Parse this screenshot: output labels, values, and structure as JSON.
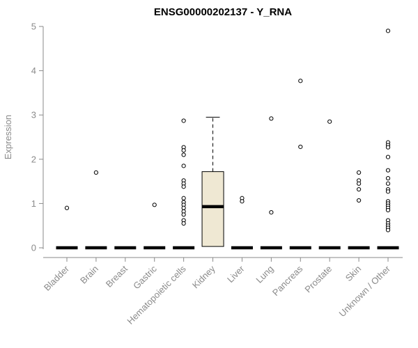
{
  "chart_data": {
    "type": "boxplot",
    "title": "ENSG00000202137 - Y_RNA",
    "ylabel": "Expression",
    "ylim": [
      0,
      5
    ],
    "yticks": [
      0,
      1,
      2,
      3,
      4,
      5
    ],
    "grid": false,
    "colors": {
      "axis": "#8a8a8a",
      "label": "#8a8a8a",
      "box_fill": "#efe8d3",
      "box_border": "#000000",
      "median": "#000000",
      "whisker": "#000000",
      "outlier_stroke": "#000000",
      "outlier_fill": "#ffffff",
      "background": "#ffffff",
      "title": "#000000"
    },
    "categories": [
      "Bladder",
      "Brain",
      "Breast",
      "Gastric",
      "Hematopoietic cells",
      "Kidney",
      "Liver",
      "Lung",
      "Pancreas",
      "Prostate",
      "Skin",
      "Unknown / Other"
    ],
    "boxes": [
      {
        "category": "Bladder",
        "q1": 0,
        "median": 0,
        "q3": 0,
        "whisker_low": 0,
        "whisker_high": 0,
        "outliers": [
          0.9
        ]
      },
      {
        "category": "Brain",
        "q1": 0,
        "median": 0,
        "q3": 0,
        "whisker_low": 0,
        "whisker_high": 0,
        "outliers": [
          1.7
        ]
      },
      {
        "category": "Breast",
        "q1": 0,
        "median": 0,
        "q3": 0,
        "whisker_low": 0,
        "whisker_high": 0,
        "outliers": []
      },
      {
        "category": "Gastric",
        "q1": 0,
        "median": 0,
        "q3": 0,
        "whisker_low": 0,
        "whisker_high": 0,
        "outliers": [
          0.97
        ]
      },
      {
        "category": "Hematopoietic cells",
        "q1": 0,
        "median": 0,
        "q3": 0,
        "whisker_low": 0,
        "whisker_high": 0,
        "outliers": [
          2.87,
          2.27,
          2.2,
          2.1,
          1.85,
          1.52,
          1.45,
          1.38,
          1.12,
          1.03,
          0.97,
          0.9,
          0.82,
          0.75,
          0.62,
          0.55
        ]
      },
      {
        "category": "Kidney",
        "q1": 0.03,
        "median": 0.93,
        "q3": 1.72,
        "whisker_low": 0.03,
        "whisker_high": 2.95,
        "outliers": []
      },
      {
        "category": "Liver",
        "q1": 0,
        "median": 0,
        "q3": 0,
        "whisker_low": 0,
        "whisker_high": 0,
        "outliers": [
          1.12,
          1.05
        ]
      },
      {
        "category": "Lung",
        "q1": 0,
        "median": 0,
        "q3": 0,
        "whisker_low": 0,
        "whisker_high": 0,
        "outliers": [
          2.92,
          0.8
        ]
      },
      {
        "category": "Pancreas",
        "q1": 0,
        "median": 0,
        "q3": 0,
        "whisker_low": 0,
        "whisker_high": 0,
        "outliers": [
          3.77,
          2.28
        ]
      },
      {
        "category": "Prostate",
        "q1": 0,
        "median": 0,
        "q3": 0,
        "whisker_low": 0,
        "whisker_high": 0,
        "outliers": [
          2.85
        ]
      },
      {
        "category": "Skin",
        "q1": 0,
        "median": 0,
        "q3": 0,
        "whisker_low": 0,
        "whisker_high": 0,
        "outliers": [
          1.7,
          1.52,
          1.45,
          1.32,
          1.07
        ]
      },
      {
        "category": "Unknown / Other",
        "q1": 0,
        "median": 0,
        "q3": 0,
        "whisker_low": 0,
        "whisker_high": 0,
        "outliers": [
          4.9,
          2.38,
          2.32,
          2.27,
          2.05,
          1.75,
          1.57,
          1.45,
          1.32,
          1.27,
          1.05,
          1.0,
          0.95,
          0.9,
          0.85,
          0.62,
          0.55,
          0.5,
          0.45,
          0.4
        ]
      }
    ]
  }
}
